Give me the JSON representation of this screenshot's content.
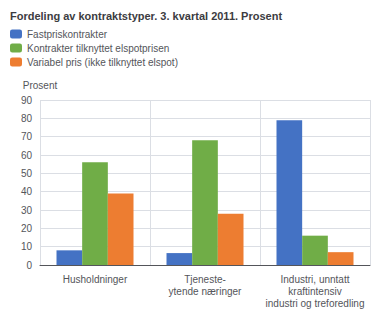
{
  "chart_data": {
    "type": "bar",
    "title": "Fordeling av kontraktstyper. 3. kvartal 2011. Prosent",
    "ylabel": "Prosent",
    "categories": [
      "Husholdninger",
      "Tjeneste-\nytende næringer",
      "Industri, unntatt\nkraftintensiv\nindustri og treforedling"
    ],
    "series": [
      {
        "name": "Fastpriskontrakter",
        "color": "#4472C4",
        "values": [
          8,
          6.5,
          79
        ]
      },
      {
        "name": "Kontrakter tilknyttet elspotprisen",
        "color": "#70AD47",
        "values": [
          56,
          68,
          16
        ]
      },
      {
        "name": "Variabel pris (ikke tilknyttet elspot)",
        "color": "#ED7D31",
        "values": [
          39,
          28,
          7
        ]
      }
    ],
    "ylim": [
      0,
      90
    ],
    "yticks": [
      0,
      10,
      20,
      30,
      40,
      50,
      60,
      70,
      80,
      90
    ],
    "grid": true,
    "legend": "upper left"
  }
}
